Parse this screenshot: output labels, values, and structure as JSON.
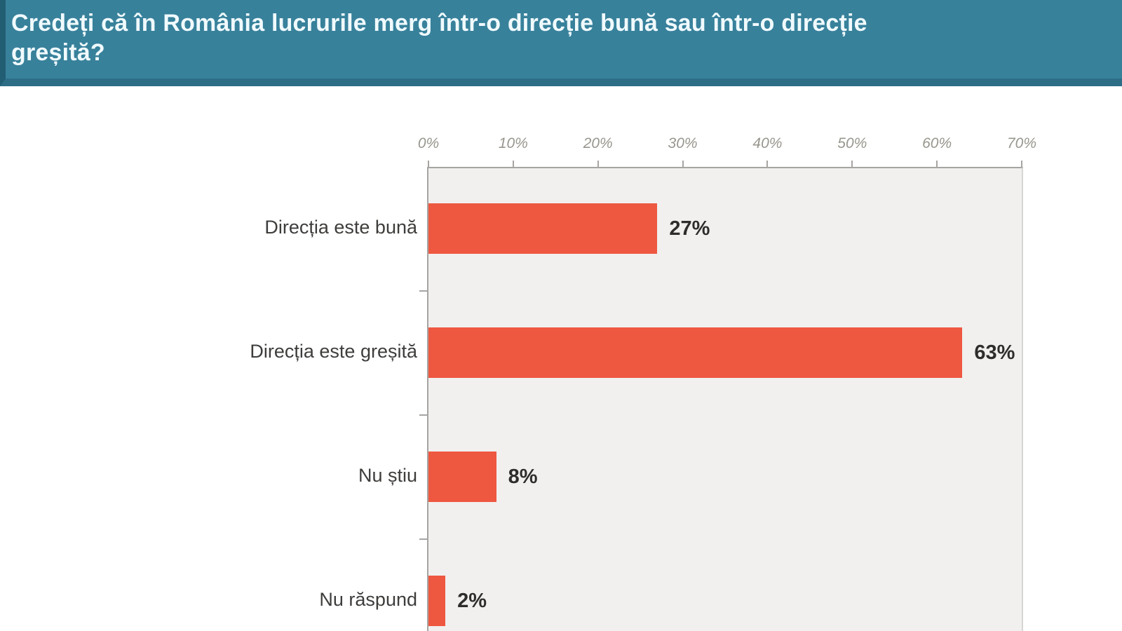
{
  "header": {
    "title": "Credeți că în România lucrurile merg într-o direcție bună sau într-o direcție greșită?"
  },
  "chart_data": {
    "type": "bar",
    "orientation": "horizontal",
    "title": "Credeți că în România lucrurile merg într-o direcție bună sau într-o direcție greșită?",
    "categories": [
      "Direcția este bună",
      "Direcția este greșită",
      "Nu știu",
      "Nu răspund"
    ],
    "values": [
      27,
      63,
      8,
      2
    ],
    "value_labels": [
      "27%",
      "63%",
      "8%",
      "2%"
    ],
    "x_axis": {
      "position": "top",
      "range": [
        0,
        70
      ],
      "ticks": [
        0,
        10,
        20,
        30,
        40,
        50,
        60,
        70
      ],
      "tick_labels": [
        "0%",
        "10%",
        "20%",
        "30%",
        "40%",
        "50%",
        "60%",
        "70%"
      ],
      "tick_style": "italic"
    },
    "grid": false,
    "legend": "none",
    "colors": {
      "bar": "#ee5740",
      "plot_background": "#f1f0ee",
      "axis_line": "#a7a5a2",
      "tick_label": "#98968e",
      "category_label": "#3f3d3b",
      "value_label": "#2e2d2b",
      "header_background": "#38819b",
      "header_bottom_border": "#2d6e86",
      "header_left_edge": "#215d73",
      "header_text": "#f0fafd"
    }
  }
}
